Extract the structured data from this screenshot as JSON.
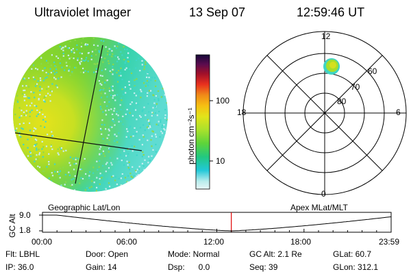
{
  "header": {
    "instrument": "Ultraviolet Imager",
    "date": "13 Sep 07",
    "time": "12:59:46 UT"
  },
  "colorbar": {
    "unit_label": "photon cm⁻²s⁻¹",
    "ticks": [
      "100",
      "10"
    ]
  },
  "polar": {
    "mlt_labels": {
      "top": "12",
      "left": "18",
      "right": "6",
      "bottom": "0"
    },
    "lat_labels": [
      "60",
      "70",
      "80"
    ]
  },
  "timeline": {
    "left_title": "Geographic Lat/Lon",
    "right_title": "Apex MLat/MLT",
    "y_axis_label": "GC Alt",
    "y_ticks": [
      "9.0",
      "1.8"
    ],
    "x_ticks": [
      "00:00",
      "06:00",
      "12:00",
      "18:00",
      "23:59"
    ],
    "current_time_fraction": 0.5416
  },
  "info": {
    "row1": [
      "Flt: LBHL",
      "Door: Open",
      "Mode: Normal",
      "GC Alt: 2.1 Re",
      "GLat: 60.7"
    ],
    "row2": [
      "IP: 36.0",
      "Gain: 14",
      "Dsp:      0.0",
      "Seq: 39",
      "GLon: 312.1"
    ]
  },
  "colors": {
    "marker": "#e00000",
    "disk_green": "#7ed321",
    "disk_cyan": "#33d6c4",
    "disk_yellow": "#d8e020"
  }
}
